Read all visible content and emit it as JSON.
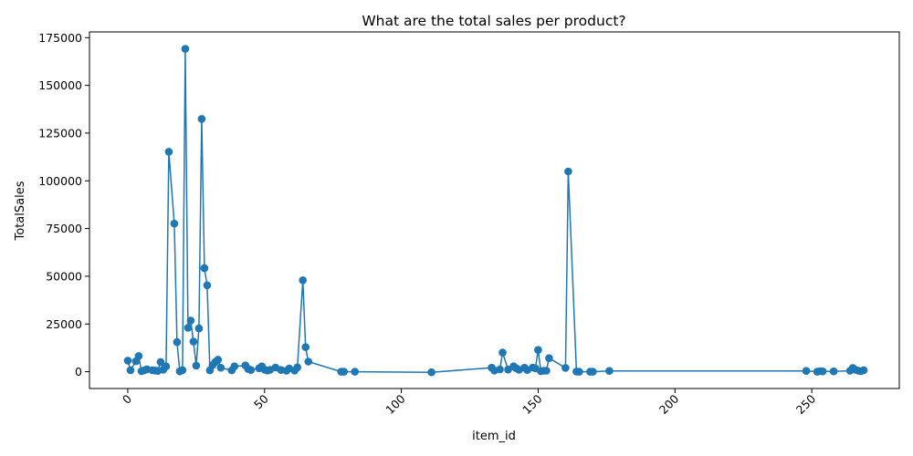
{
  "chart_data": {
    "type": "line",
    "title": "What are the total sales per product?",
    "xlabel": "item_id",
    "ylabel": "TotalSales",
    "xlim": [
      -14,
      282
    ],
    "ylim": [
      -8800,
      178000
    ],
    "xticks": [
      0,
      50,
      100,
      150,
      200,
      250
    ],
    "yticks": [
      0,
      25000,
      50000,
      75000,
      100000,
      125000,
      150000,
      175000
    ],
    "grid": false,
    "legend": "none",
    "color": "#1f77b4",
    "series": [
      {
        "x": [
          0,
          1,
          3,
          4,
          5,
          6,
          7,
          9,
          10,
          11,
          12,
          13,
          14,
          15,
          17,
          18,
          19,
          20,
          21,
          22,
          23,
          24,
          25,
          26,
          27,
          28,
          29,
          30,
          31,
          32,
          33,
          34,
          38,
          39,
          43,
          44,
          45,
          48,
          49,
          50,
          51,
          52,
          54,
          56,
          58,
          59,
          61,
          62,
          64,
          65,
          66,
          78,
          79,
          83,
          111,
          133,
          134,
          136,
          137,
          139,
          141,
          142,
          143,
          145,
          146,
          148,
          149,
          150,
          151,
          152,
          153,
          154,
          160,
          161,
          164,
          165,
          169,
          170,
          176,
          248,
          252,
          253,
          254,
          258,
          264,
          265,
          266,
          267,
          268,
          269
        ],
        "y": [
          5800,
          800,
          5500,
          8200,
          300,
          700,
          1300,
          800,
          600,
          400,
          5100,
          1100,
          2800,
          115200,
          77600,
          15500,
          200,
          800,
          169100,
          23000,
          26800,
          15800,
          3200,
          22700,
          132400,
          54200,
          45300,
          700,
          3500,
          5100,
          6300,
          2100,
          700,
          2800,
          3300,
          1400,
          900,
          1800,
          2800,
          1100,
          600,
          1000,
          2200,
          900,
          500,
          1700,
          600,
          2300,
          47900,
          12900,
          5300,
          0,
          0,
          0,
          -300,
          2100,
          600,
          1200,
          10000,
          1100,
          2800,
          1800,
          1000,
          2100,
          900,
          2200,
          1800,
          11400,
          300,
          500,
          500,
          7100,
          2000,
          104900,
          100,
          0,
          0,
          0,
          400,
          400,
          0,
          300,
          200,
          200,
          500,
          2000,
          1000,
          500,
          300,
          800
        ]
      }
    ]
  }
}
